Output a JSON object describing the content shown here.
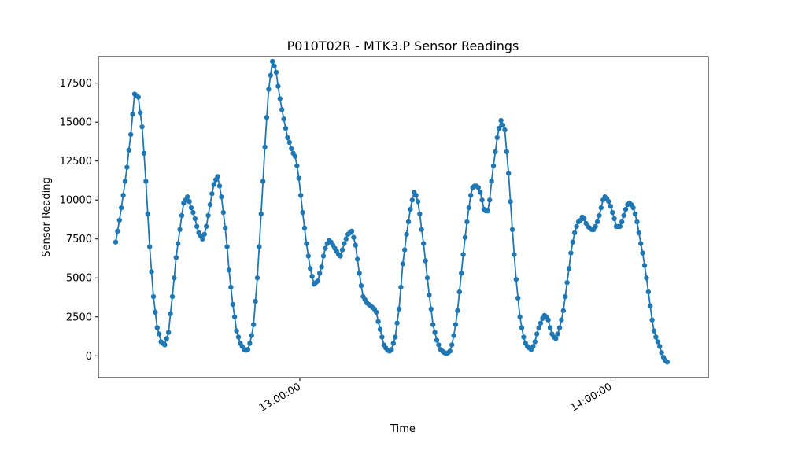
{
  "chart_data": {
    "type": "line",
    "title": "P010T02R - MTK3.P Sensor Readings",
    "xlabel": "Time",
    "ylabel": "Sensor Reading",
    "x_time_range": [
      "12:24:30",
      "14:10:50"
    ],
    "xlim": [
      "12:21:10",
      "14:18:45"
    ],
    "ylim": [
      -1400,
      19200
    ],
    "y_ticks": [
      0,
      2500,
      5000,
      7500,
      10000,
      12500,
      15000,
      17500
    ],
    "x_ticks": [
      {
        "time": "13:00:00",
        "label": "13:00:00"
      },
      {
        "time": "14:00:00",
        "label": "14:00:00"
      }
    ],
    "grid": false,
    "legend": "none",
    "series_color": "#1f77b4",
    "series": [
      {
        "values": [
          7300,
          8000,
          8700,
          9500,
          10300,
          11200,
          12100,
          13200,
          14200,
          15500,
          16800,
          16700,
          16600,
          15600,
          14700,
          13000,
          11200,
          9100,
          7000,
          5400,
          3800,
          2800,
          1800,
          1400,
          900,
          800,
          700,
          1100,
          1500,
          2700,
          3800,
          5000,
          6300,
          7200,
          8100,
          9000,
          9800,
          10000,
          10200,
          9900,
          9500,
          9200,
          8800,
          8300,
          7900,
          7700,
          7500,
          7800,
          8300,
          9000,
          9700,
          10400,
          11000,
          11300,
          11500,
          10900,
          10200,
          9200,
          8200,
          7000,
          5500,
          4400,
          3300,
          2500,
          1600,
          1200,
          800,
          600,
          400,
          350,
          400,
          800,
          1300,
          2000,
          3500,
          5000,
          7000,
          9100,
          11200,
          13400,
          15300,
          17100,
          18000,
          18900,
          18600,
          18200,
          17300,
          16500,
          15800,
          15200,
          14600,
          14000,
          13700,
          13300,
          13000,
          12800,
          12200,
          11400,
          10300,
          9200,
          8200,
          7200,
          6400,
          5600,
          5100,
          4600,
          4700,
          4800,
          5300,
          5700,
          6400,
          6900,
          7200,
          7400,
          7300,
          7100,
          6900,
          6700,
          6500,
          6400,
          6800,
          7200,
          7500,
          7800,
          7900,
          8000,
          7600,
          7100,
          6200,
          5300,
          4500,
          3800,
          3600,
          3400,
          3300,
          3200,
          3100,
          3000,
          2800,
          2200,
          1700,
          1200,
          700,
          500,
          350,
          300,
          400,
          800,
          1200,
          2100,
          3000,
          4400,
          5900,
          6800,
          7800,
          8600,
          9400,
          10000,
          10500,
          10300,
          9900,
          9100,
          8100,
          7200,
          6100,
          5000,
          3900,
          3000,
          2000,
          1500,
          1000,
          700,
          400,
          300,
          200,
          150,
          200,
          300,
          700,
          1300,
          2000,
          2900,
          4100,
          5300,
          6500,
          7600,
          8600,
          9500,
          10300,
          10800,
          10900,
          10900,
          10800,
          10500,
          10000,
          9400,
          9300,
          9300,
          10000,
          11200,
          12200,
          13100,
          14000,
          14600,
          15100,
          14800,
          14500,
          13100,
          11700,
          9900,
          8100,
          6500,
          4900,
          3700,
          2500,
          1800,
          1200,
          800,
          600,
          500,
          400,
          600,
          900,
          1400,
          1800,
          2100,
          2400,
          2600,
          2500,
          2300,
          1800,
          1400,
          1200,
          1100,
          1400,
          1800,
          2300,
          2900,
          3800,
          4700,
          5600,
          6600,
          7300,
          7900,
          8300,
          8600,
          8700,
          8900,
          8800,
          8500,
          8300,
          8200,
          8100,
          8100,
          8300,
          8600,
          9000,
          9500,
          10000,
          10200,
          10100,
          9900,
          9600,
          9200,
          8800,
          8300,
          8300,
          8300,
          8600,
          9000,
          9400,
          9700,
          9800,
          9700,
          9500,
          9100,
          8600,
          7900,
          7200,
          6600,
          5800,
          5000,
          4100,
          3200,
          2300,
          1600,
          1200,
          900,
          600,
          200,
          -100,
          -300,
          -400
        ]
      }
    ]
  }
}
